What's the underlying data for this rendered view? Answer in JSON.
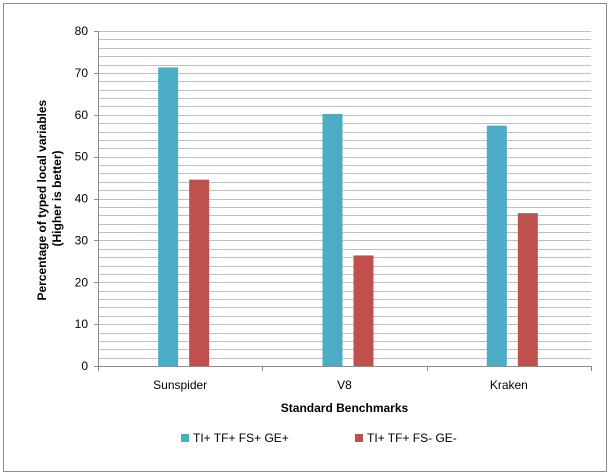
{
  "chart_data": {
    "type": "bar",
    "categories": [
      "Sunspider",
      "V8",
      "Kraken"
    ],
    "series": [
      {
        "name": "TI+ TF+ FS+ GE+",
        "values": [
          71.3,
          60.2,
          57.4
        ],
        "color": "#4bacc6"
      },
      {
        "name": "TI+ TF+ FS- GE-",
        "values": [
          44.5,
          26.4,
          36.5
        ],
        "color": "#c0504d"
      }
    ],
    "xlabel": "Standard Benchmarks",
    "ylabel": [
      "Percentage of typed local variables",
      "(Higher is better)"
    ],
    "ylim": [
      0,
      80
    ],
    "yticks": [
      0,
      10,
      20,
      30,
      40,
      50,
      60,
      70,
      80
    ],
    "minor_grid_step": 2,
    "grid": true,
    "legend_position": "bottom"
  }
}
